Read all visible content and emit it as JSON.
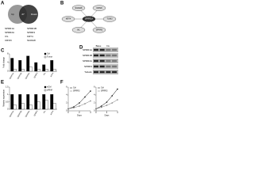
{
  "panels": {
    "a": "A",
    "b": "B",
    "c": "C",
    "d": "D",
    "e": "E",
    "f": "F"
  },
  "venn": {
    "left": "Up",
    "right": "Down",
    "overlap": "27",
    "genes": [
      "SPRR1A",
      "SPRR1B",
      "SPRR2A",
      "SPRR3",
      "IVL",
      "KRT4",
      "CRNN",
      "S100A8"
    ]
  },
  "network": {
    "nodes": [
      "SPRR1A",
      "SPRR3",
      "IVL",
      "KRT4",
      "S100A8",
      "CRNN",
      "TGM3"
    ]
  },
  "blot": {
    "columns": [
      "Base",
      "Inv"
    ],
    "rows": [
      "SPRR1A",
      "SPRR1B",
      "SPRR2A",
      "SPRR3",
      "Tubulin"
    ]
  },
  "chart_data": [
    {
      "type": "bar",
      "ylabel": "Fold change",
      "categories": [
        "SPRR1A",
        "SPRR1B",
        "SPRR2A",
        "SPRR3",
        "IVL",
        "KRT4"
      ],
      "ylim": [
        0,
        8
      ],
      "yticks": [
        0,
        4,
        8
      ],
      "series": [
        {
          "name": "Ctrl",
          "color": "#000000",
          "values": [
            6,
            5,
            7,
            4,
            3,
            5
          ]
        },
        {
          "name": "Tumor",
          "color": "#ffffff",
          "values": [
            1,
            1,
            2,
            1,
            1,
            1
          ]
        }
      ]
    },
    {
      "type": "bar",
      "ylabel": "Relative expression",
      "categories": [
        "SPRR1A",
        "SPRR1B",
        "SPRR2A",
        "SPRR3",
        "IVL",
        "KRT4"
      ],
      "ylim": [
        0,
        1.5
      ],
      "yticks": [
        0,
        0.5,
        1,
        1.5
      ],
      "series": [
        {
          "name": "siCtrl",
          "color": "#000000",
          "values": [
            1,
            1,
            1,
            1,
            1,
            1
          ]
        },
        {
          "name": "siRNA",
          "color": "#ffffff",
          "values": [
            0.3,
            0.4,
            0.3,
            0.5,
            0.6,
            0.4
          ]
        }
      ]
    },
    {
      "type": "line",
      "xlabel": "Days",
      "x": [
        0,
        1,
        2,
        3,
        4
      ],
      "xlim": [
        0,
        4
      ],
      "xticks": [
        0,
        2,
        4
      ],
      "ylim": [
        0,
        6
      ],
      "yticks": [
        0,
        2,
        4,
        6
      ],
      "series": [
        {
          "name": "Ctrl",
          "color": "#000000",
          "values": [
            0.5,
            1,
            2,
            3.5,
            5
          ]
        },
        {
          "name": "SPRR3",
          "color": "#777777",
          "values": [
            0.5,
            0.8,
            1.2,
            1.8,
            2.5
          ]
        }
      ]
    },
    {
      "type": "line",
      "xlabel": "Days",
      "x": [
        0,
        1,
        2,
        3,
        4
      ],
      "xlim": [
        0,
        4
      ],
      "xticks": [
        0,
        2,
        4
      ],
      "ylim": [
        0,
        6
      ],
      "yticks": [
        0,
        2,
        4,
        6
      ],
      "series": [
        {
          "name": "Ctrl",
          "color": "#000000",
          "values": [
            0.5,
            1.2,
            2.2,
            3.8,
            5.5
          ]
        },
        {
          "name": "SPRR3",
          "color": "#777777",
          "values": [
            0.5,
            0.9,
            1.4,
            2,
            2.8
          ]
        }
      ]
    }
  ]
}
